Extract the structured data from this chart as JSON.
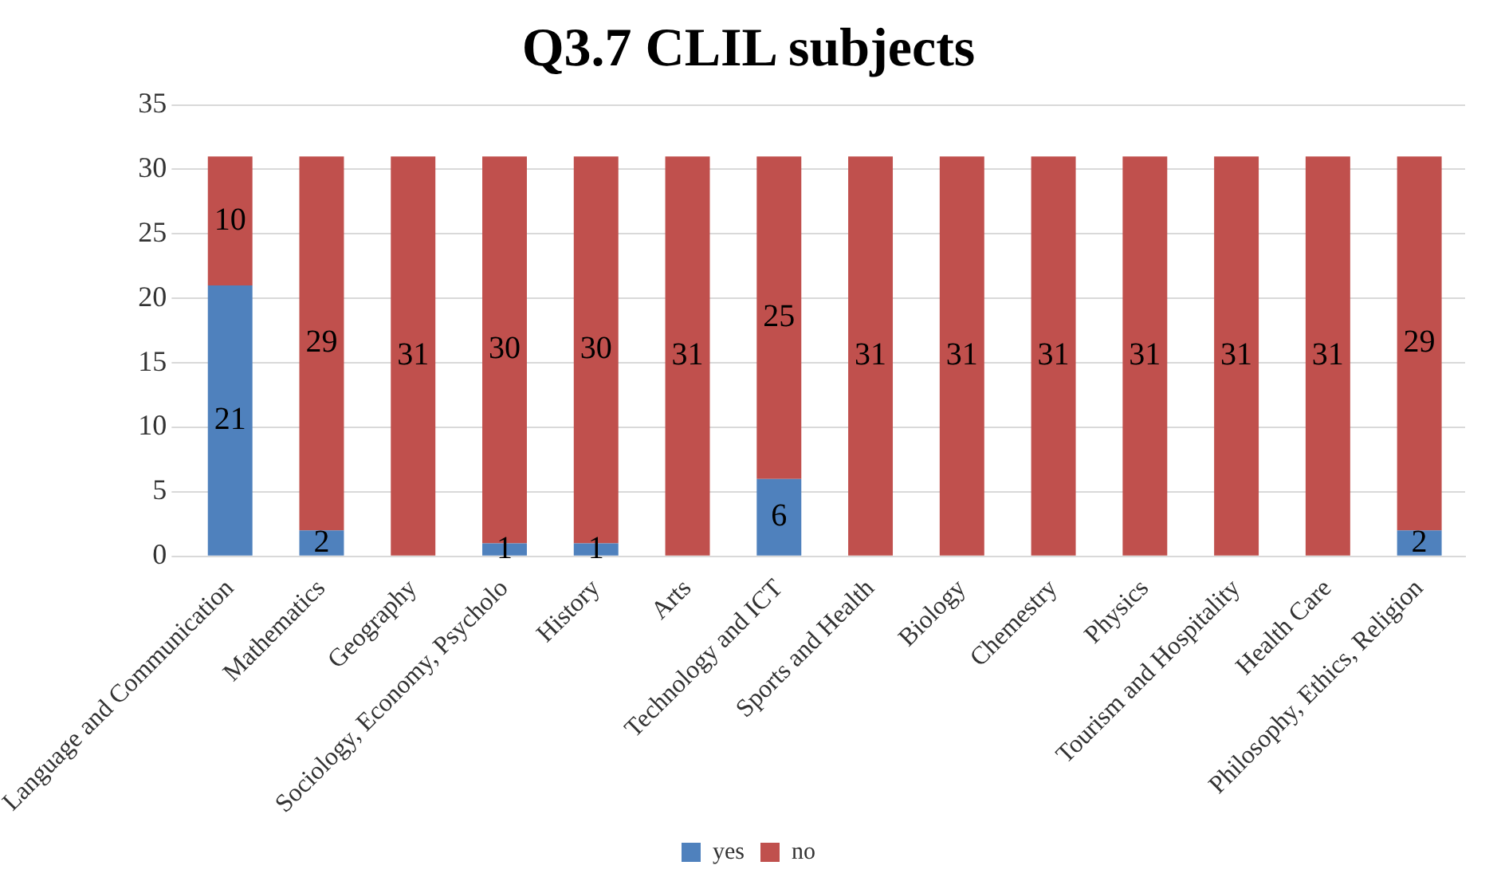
{
  "chart_data": {
    "type": "bar",
    "title": "Q3.7 CLIL subjects",
    "categories": [
      "Language and Communication",
      "Mathematics",
      "Geography",
      "Sociology, Economy, Psycholo",
      "History",
      "Arts",
      "Technology and ICT",
      "Sports and Health",
      "Biology",
      "Chemestry",
      "Physics",
      "Tourism and Hospitality",
      "Health Care",
      "Philosophy, Ethics, Religion"
    ],
    "stacked": true,
    "series": [
      {
        "name": "yes",
        "color": "#4f81bd",
        "values": [
          21,
          2,
          0,
          1,
          1,
          0,
          6,
          0,
          0,
          0,
          0,
          0,
          0,
          2
        ],
        "value_labels": [
          "21",
          "2",
          null,
          "1",
          "1",
          null,
          "6",
          null,
          null,
          null,
          null,
          null,
          null,
          "2"
        ]
      },
      {
        "name": "no",
        "color": "#c0504d",
        "values": [
          10,
          29,
          31,
          30,
          30,
          31,
          25,
          31,
          31,
          31,
          31,
          31,
          31,
          29
        ],
        "value_labels": [
          "10",
          "29",
          "31",
          "30",
          "30",
          "31",
          "25",
          "31",
          "31",
          "31",
          "31",
          "31",
          "31",
          "29"
        ]
      }
    ],
    "ylim": [
      0,
      35
    ],
    "yticks": [
      0,
      5,
      10,
      15,
      20,
      25,
      30,
      35
    ],
    "grid": "y",
    "legend": "bottom"
  }
}
